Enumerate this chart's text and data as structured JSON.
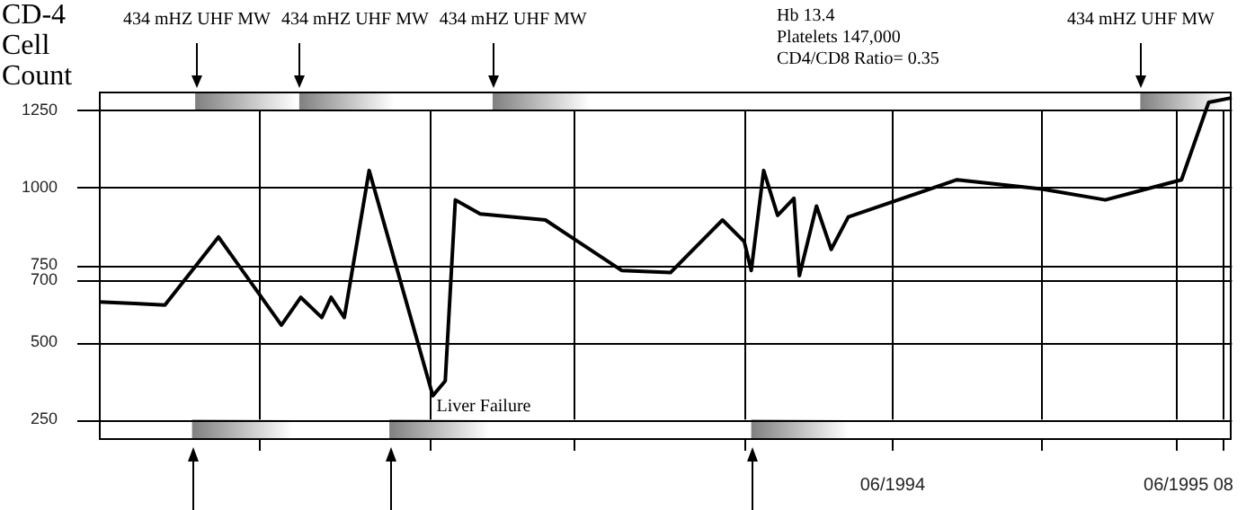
{
  "chart_data": {
    "type": "line",
    "ylabel": "CD-4 Cell Count",
    "color": "#000000",
    "x": [
      "1991-08-14",
      "1991-09-29",
      "1991-11-07",
      "1992-01-15",
      "1992-04-05",
      "1992-04-30",
      "1992-05-27",
      "1992-06-08",
      "1992-06-25",
      "1992-07-27",
      "1992-10-17",
      "1992-11-02",
      "1992-11-15",
      "1992-12-17",
      "1993-03-11",
      "1993-06-17",
      "1993-08-19",
      "1993-10-25",
      "1993-11-22",
      "1993-12-01",
      "1993-12-17",
      "1994-01-04",
      "1994-01-25",
      "1994-02-01",
      "1994-02-23",
      "1994-03-14",
      "1994-04-05",
      "1994-08-23",
      "1994-12-10",
      "1995-03-02",
      "1995-06-08",
      "1995-07-13",
      "1995-08-12"
    ],
    "values": [
      630,
      625,
      620,
      840,
      555,
      645,
      580,
      645,
      580,
      1055,
      327,
      375,
      960,
      915,
      895,
      732,
      725,
      895,
      825,
      732,
      1055,
      910,
      965,
      715,
      940,
      800,
      905,
      1025,
      995,
      960,
      1025,
      1275,
      1290
    ],
    "xlim": [
      "1991-08-14",
      "1995-08-12"
    ],
    "xticks": [
      {
        "value": "1992-03-06",
        "label": null
      },
      {
        "value": "1992-10-14",
        "label": null
      },
      {
        "value": "1993-04-17",
        "label": null
      },
      {
        "value": "1993-11-22",
        "label": null
      },
      {
        "value": "1994-06-01",
        "label": "06/1994"
      },
      {
        "value": "1994-12-10",
        "label": null
      },
      {
        "value": "1995-06-01",
        "label": "06/1995"
      },
      {
        "value": "1995-08-01",
        "label": "08"
      }
    ],
    "ylim": [
      190,
      1310
    ],
    "yticks": [
      250,
      500,
      700,
      750,
      1000,
      1250
    ],
    "grid": true,
    "bands": [
      {
        "axis": "x",
        "from": "1991-12-16",
        "to": "1992-04-25",
        "label": "434 mHZ UHF MW",
        "color": "#808080"
      },
      {
        "axis": "x",
        "from": "1992-04-28",
        "to": "1992-08-28",
        "label": "434 mHZ UHF MW",
        "color": "#808080"
      },
      {
        "axis": "x",
        "from": "1993-01-02",
        "to": "1993-05-07",
        "label": "434 mHZ UHF MW",
        "color": "#808080"
      },
      {
        "axis": "x",
        "from": "1995-04-16",
        "to": "1995-08-01",
        "label": "434 mHZ UHF MW",
        "color": "#808080"
      },
      {
        "axis": "x",
        "from": "1991-12-12",
        "to": "1992-04-19",
        "color": "#808080"
      },
      {
        "axis": "x",
        "from": "1992-08-22",
        "to": "1992-12-28",
        "color": "#808080"
      },
      {
        "axis": "x",
        "from": "1993-12-01",
        "to": "1994-04-05",
        "color": "#808080"
      }
    ],
    "annotations": [
      {
        "text": "Liver Failure",
        "x": "1992-10-17",
        "y": 327
      },
      "Hb 13.4\nPlatelets 147,000\nCD4/CD8 Ratio= 0.35"
    ]
  }
}
